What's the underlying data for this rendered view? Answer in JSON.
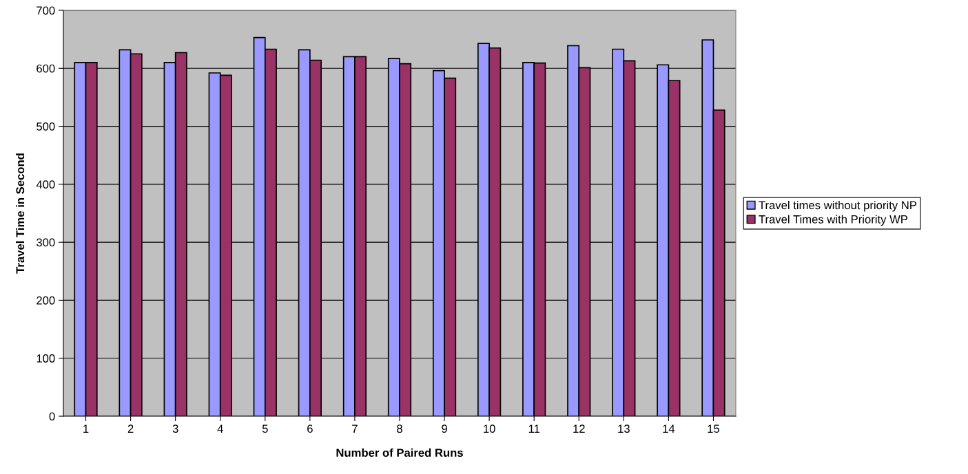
{
  "chart_data": {
    "type": "bar",
    "xlabel": "Number of Paired Runs",
    "ylabel": "Travel Time in Second",
    "categories": [
      "1",
      "2",
      "3",
      "4",
      "5",
      "6",
      "7",
      "8",
      "9",
      "10",
      "11",
      "12",
      "13",
      "14",
      "15"
    ],
    "series": [
      {
        "name": "Travel times without priority NP",
        "color": "#9999ff",
        "values": [
          610,
          632,
          610,
          592,
          653,
          632,
          620,
          617,
          596,
          643,
          610,
          639,
          633,
          606,
          649
        ]
      },
      {
        "name": "Travel Times with Priority WP",
        "color": "#993366",
        "values": [
          610,
          625,
          627,
          588,
          633,
          614,
          620,
          608,
          583,
          635,
          609,
          601,
          613,
          579,
          528
        ]
      }
    ],
    "ylim": [
      0,
      700
    ],
    "yticks": [
      0,
      100,
      200,
      300,
      400,
      500,
      600,
      700
    ],
    "grid": "y",
    "legend": "right"
  }
}
